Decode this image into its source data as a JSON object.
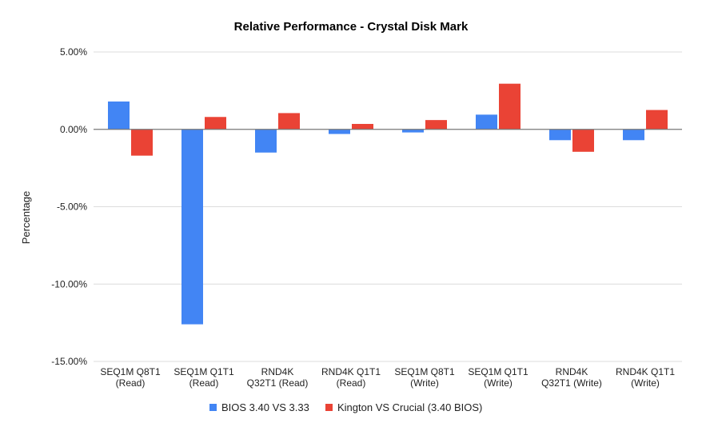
{
  "chart_data": {
    "type": "bar",
    "title": "Relative Performance - Crystal Disk Mark",
    "ylabel": "Percentage",
    "xlabel": "",
    "ylim": [
      -15,
      5
    ],
    "yticks": [
      5,
      0,
      -5,
      -10,
      -15
    ],
    "ytick_labels": [
      "5.00%",
      "0.00%",
      "-5.00%",
      "-10.00%",
      "-15.00%"
    ],
    "grid": true,
    "legend_position": "bottom",
    "categories": [
      [
        "SEQ1M Q8T1",
        "(Read)"
      ],
      [
        "SEQ1M Q1T1",
        "(Read)"
      ],
      [
        "RND4K",
        "Q32T1 (Read)"
      ],
      [
        "RND4K Q1T1",
        "(Read)"
      ],
      [
        "SEQ1M Q8T1",
        "(Write)"
      ],
      [
        "SEQ1M Q1T1",
        "(Write)"
      ],
      [
        "RND4K",
        "Q32T1 (Write)"
      ],
      [
        "RND4K Q1T1",
        "(Write)"
      ]
    ],
    "series": [
      {
        "name": "BIOS 3.40 VS 3.33",
        "color": "#4285f4",
        "values": [
          1.8,
          -12.6,
          -1.5,
          -0.3,
          -0.2,
          0.95,
          -0.7,
          -0.7
        ]
      },
      {
        "name": "Kington VS Crucial (3.40 BIOS)",
        "color": "#ea4335",
        "values": [
          -1.7,
          0.8,
          1.05,
          0.35,
          0.6,
          2.95,
          -1.45,
          1.25
        ]
      }
    ]
  }
}
